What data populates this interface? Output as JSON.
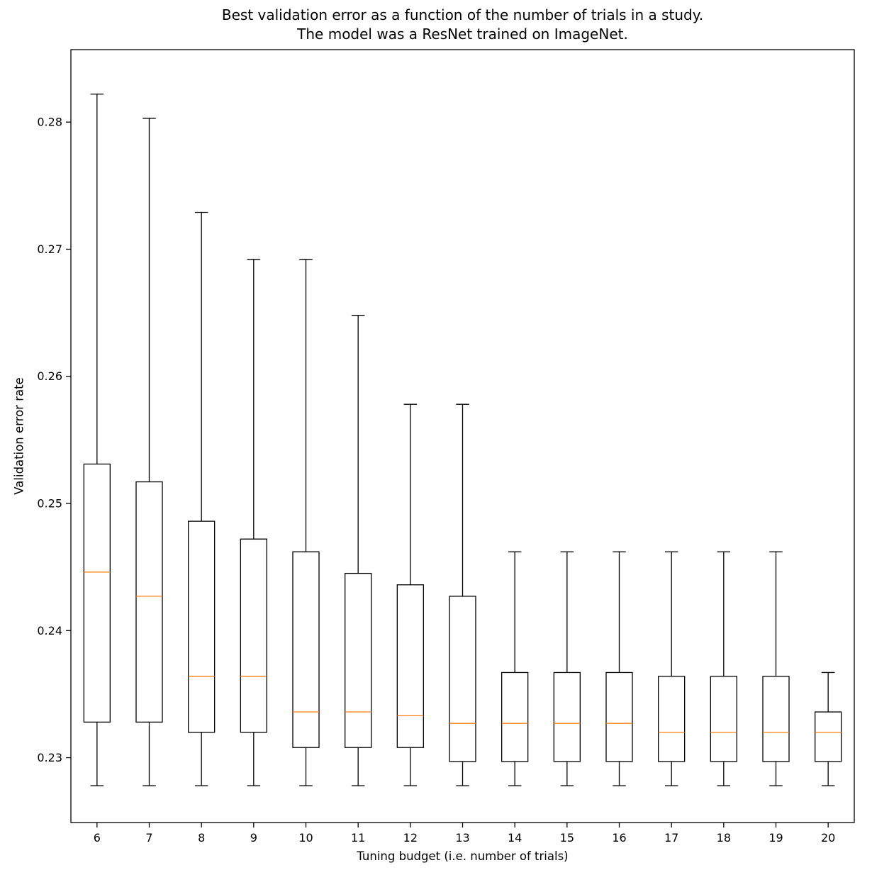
{
  "figure": {
    "title_lines": [
      "Best validation error as a function of the number of trials in a study.",
      "The model was a ResNet trained on ImageNet."
    ]
  },
  "chart_data": {
    "type": "boxplot",
    "title": "Best validation error as a function of the number of trials in a study.\nThe model was a ResNet trained on ImageNet.",
    "xlabel": "Tuning budget (i.e. number of trials)",
    "ylabel": "Validation error rate",
    "categories": [
      "6",
      "7",
      "8",
      "9",
      "10",
      "11",
      "12",
      "13",
      "14",
      "15",
      "16",
      "17",
      "18",
      "19",
      "20"
    ],
    "yticks": [
      0.23,
      0.24,
      0.25,
      0.26,
      0.27,
      0.28
    ],
    "ytick_labels": [
      "0.23",
      "0.24",
      "0.25",
      "0.26",
      "0.27",
      "0.28"
    ],
    "ylim": [
      0.2249,
      0.2857
    ],
    "grid": false,
    "legend": "none",
    "box_edge_color": "#000000",
    "median_color": "#ff7f0e",
    "boxes": [
      {
        "label": "6",
        "whislo": 0.2278,
        "q1": 0.2328,
        "med": 0.2446,
        "q3": 0.2531,
        "whishi": 0.2822
      },
      {
        "label": "7",
        "whislo": 0.2278,
        "q1": 0.2328,
        "med": 0.2427,
        "q3": 0.2517,
        "whishi": 0.2803
      },
      {
        "label": "8",
        "whislo": 0.2278,
        "q1": 0.232,
        "med": 0.2364,
        "q3": 0.2486,
        "whishi": 0.2729
      },
      {
        "label": "9",
        "whislo": 0.2278,
        "q1": 0.232,
        "med": 0.2364,
        "q3": 0.2472,
        "whishi": 0.2692
      },
      {
        "label": "10",
        "whislo": 0.2278,
        "q1": 0.2308,
        "med": 0.2336,
        "q3": 0.2462,
        "whishi": 0.2692
      },
      {
        "label": "11",
        "whislo": 0.2278,
        "q1": 0.2308,
        "med": 0.2336,
        "q3": 0.2445,
        "whishi": 0.2648
      },
      {
        "label": "12",
        "whislo": 0.2278,
        "q1": 0.2308,
        "med": 0.2333,
        "q3": 0.2436,
        "whishi": 0.2578
      },
      {
        "label": "13",
        "whislo": 0.2278,
        "q1": 0.2297,
        "med": 0.2327,
        "q3": 0.2427,
        "whishi": 0.2578
      },
      {
        "label": "14",
        "whislo": 0.2278,
        "q1": 0.2297,
        "med": 0.2327,
        "q3": 0.2367,
        "whishi": 0.2462
      },
      {
        "label": "15",
        "whislo": 0.2278,
        "q1": 0.2297,
        "med": 0.2327,
        "q3": 0.2367,
        "whishi": 0.2462
      },
      {
        "label": "16",
        "whislo": 0.2278,
        "q1": 0.2297,
        "med": 0.2327,
        "q3": 0.2367,
        "whishi": 0.2462
      },
      {
        "label": "17",
        "whislo": 0.2278,
        "q1": 0.2297,
        "med": 0.232,
        "q3": 0.2364,
        "whishi": 0.2462
      },
      {
        "label": "18",
        "whislo": 0.2278,
        "q1": 0.2297,
        "med": 0.232,
        "q3": 0.2364,
        "whishi": 0.2462
      },
      {
        "label": "19",
        "whislo": 0.2278,
        "q1": 0.2297,
        "med": 0.232,
        "q3": 0.2364,
        "whishi": 0.2462
      },
      {
        "label": "20",
        "whislo": 0.2278,
        "q1": 0.2297,
        "med": 0.232,
        "q3": 0.2336,
        "whishi": 0.2367
      }
    ]
  }
}
